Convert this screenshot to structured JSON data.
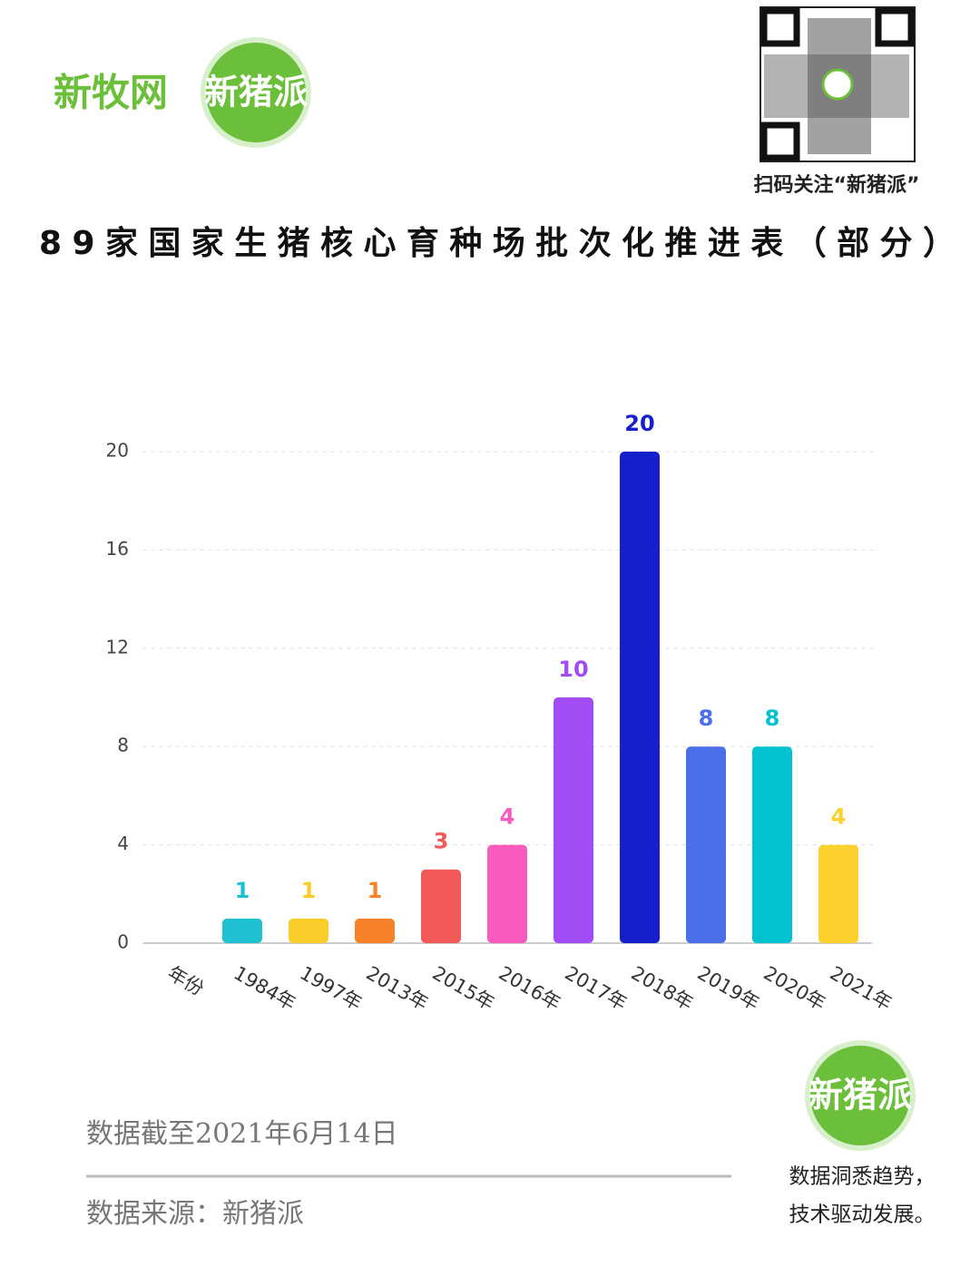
{
  "header": {
    "logo_left": "新牧网",
    "logo_right": "新猪派",
    "qr_caption": "扫码关注“新猪派”"
  },
  "chart_data": {
    "type": "bar",
    "title": "89家国家生猪核心育种场批次化推进表（部分）",
    "categories": [
      "年份",
      "1984年",
      "1997年",
      "2013年",
      "2015年",
      "2016年",
      "2017年",
      "2018年",
      "2019年",
      "2020年",
      "2021年"
    ],
    "values": [
      null,
      1,
      1,
      1,
      3,
      4,
      10,
      20,
      8,
      8,
      4
    ],
    "colors": [
      null,
      "#1ec1d0",
      "#f8cd2a",
      "#f7822a",
      "#f25a5a",
      "#f95bbd",
      "#a24cf5",
      "#1520cc",
      "#4a6fe8",
      "#00c2d0",
      "#fdd22e"
    ],
    "ylim": [
      0,
      20
    ],
    "yticks": [
      0,
      4,
      8,
      12,
      16,
      20
    ],
    "grid": true
  },
  "footer": {
    "note": "数据截至2021年6月14日",
    "source": "数据来源：新猪派",
    "logo": "新猪派",
    "slogan_1": "数据洞悉趋势，",
    "slogan_2": "技术驱动发展。"
  }
}
